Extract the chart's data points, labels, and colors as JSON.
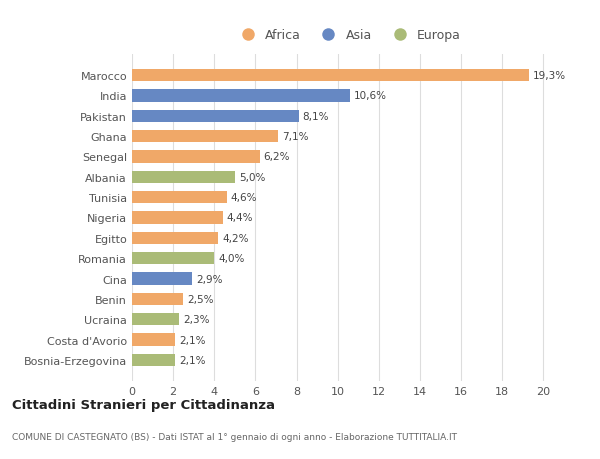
{
  "categories": [
    "Bosnia-Erzegovina",
    "Costa d'Avorio",
    "Ucraina",
    "Benin",
    "Cina",
    "Romania",
    "Egitto",
    "Nigeria",
    "Tunisia",
    "Albania",
    "Senegal",
    "Ghana",
    "Pakistan",
    "India",
    "Marocco"
  ],
  "values": [
    2.1,
    2.1,
    2.3,
    2.5,
    2.9,
    4.0,
    4.2,
    4.4,
    4.6,
    5.0,
    6.2,
    7.1,
    8.1,
    10.6,
    19.3
  ],
  "labels": [
    "2,1%",
    "2,1%",
    "2,3%",
    "2,5%",
    "2,9%",
    "4,0%",
    "4,2%",
    "4,4%",
    "4,6%",
    "5,0%",
    "6,2%",
    "7,1%",
    "8,1%",
    "10,6%",
    "19,3%"
  ],
  "continent": [
    "Europa",
    "Africa",
    "Europa",
    "Africa",
    "Asia",
    "Europa",
    "Africa",
    "Africa",
    "Africa",
    "Europa",
    "Africa",
    "Africa",
    "Asia",
    "Asia",
    "Africa"
  ],
  "color_africa": "#F0A868",
  "color_asia": "#6688C3",
  "color_europa": "#AABB77",
  "background_color": "#ffffff",
  "grid_color": "#dddddd",
  "title_main": "Cittadini Stranieri per Cittadinanza",
  "title_sub": "COMUNE DI CASTEGNATO (BS) - Dati ISTAT al 1° gennaio di ogni anno - Elaborazione TUTTITALIA.IT",
  "xlim": [
    0,
    21
  ],
  "xticks": [
    0,
    2,
    4,
    6,
    8,
    10,
    12,
    14,
    16,
    18,
    20
  ],
  "legend_labels": [
    "Africa",
    "Asia",
    "Europa"
  ],
  "bar_height": 0.6
}
